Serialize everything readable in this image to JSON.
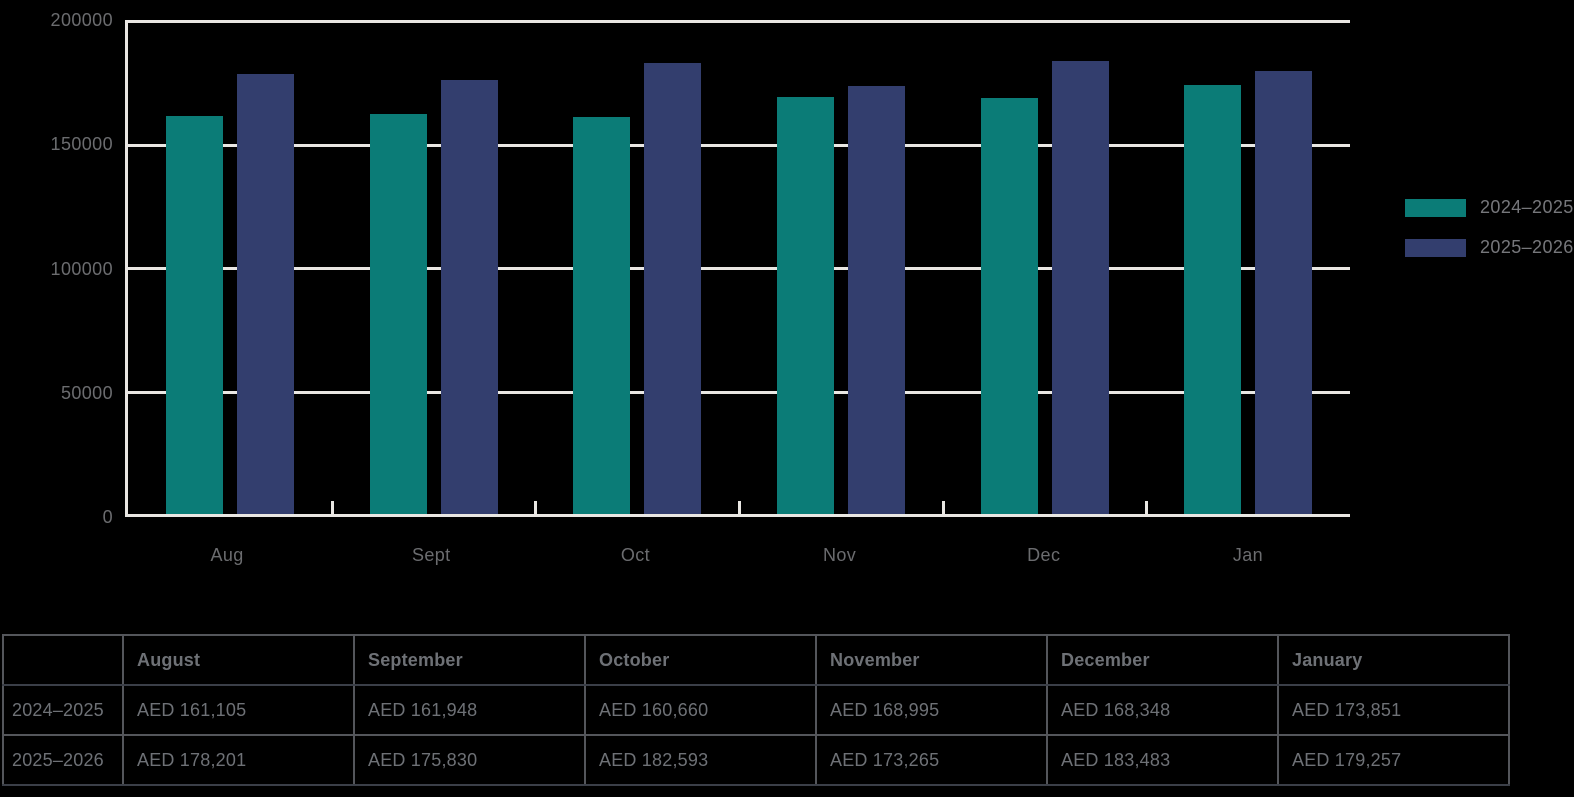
{
  "background": "#000000",
  "chart_data": {
    "type": "bar",
    "title": "",
    "xlabel": "",
    "ylabel": "",
    "categories": [
      "Aug",
      "Sept",
      "Oct",
      "Nov",
      "Dec",
      "Jan"
    ],
    "series": [
      {
        "name": "2024–2025",
        "color": "#0B7C77",
        "values": [
          161105,
          161948,
          160660,
          168995,
          168348,
          173851
        ]
      },
      {
        "name": "2025–2026",
        "color": "#333E6E",
        "values": [
          178201,
          175830,
          182593,
          173265,
          183483,
          179257
        ]
      }
    ],
    "ylim": [
      0,
      200000
    ],
    "yticks": [
      0,
      50000,
      100000,
      150000,
      200000
    ],
    "ytick_labels": [
      "0",
      "50000",
      "100000",
      "150000",
      "200000"
    ],
    "grid": true,
    "legend_position": "right",
    "axis_color": "#E9E7E3",
    "label_color": "#6B6C6F",
    "legend_text_color": "#76777B"
  },
  "table": {
    "columns": [
      "",
      "August",
      "September",
      "October",
      "November",
      "December",
      "January"
    ],
    "rows": [
      {
        "label": "2024–2025",
        "cells": [
          "AED 161,105",
          "AED 161,948",
          "AED 160,660",
          "AED 168,995",
          "AED 168,348",
          "AED 173,851"
        ]
      },
      {
        "label": "2025–2026",
        "cells": [
          "AED 178,201",
          "AED 175,830",
          "AED 182,593",
          "AED 173,265",
          "AED 183,483",
          "AED 179,257"
        ]
      }
    ]
  }
}
